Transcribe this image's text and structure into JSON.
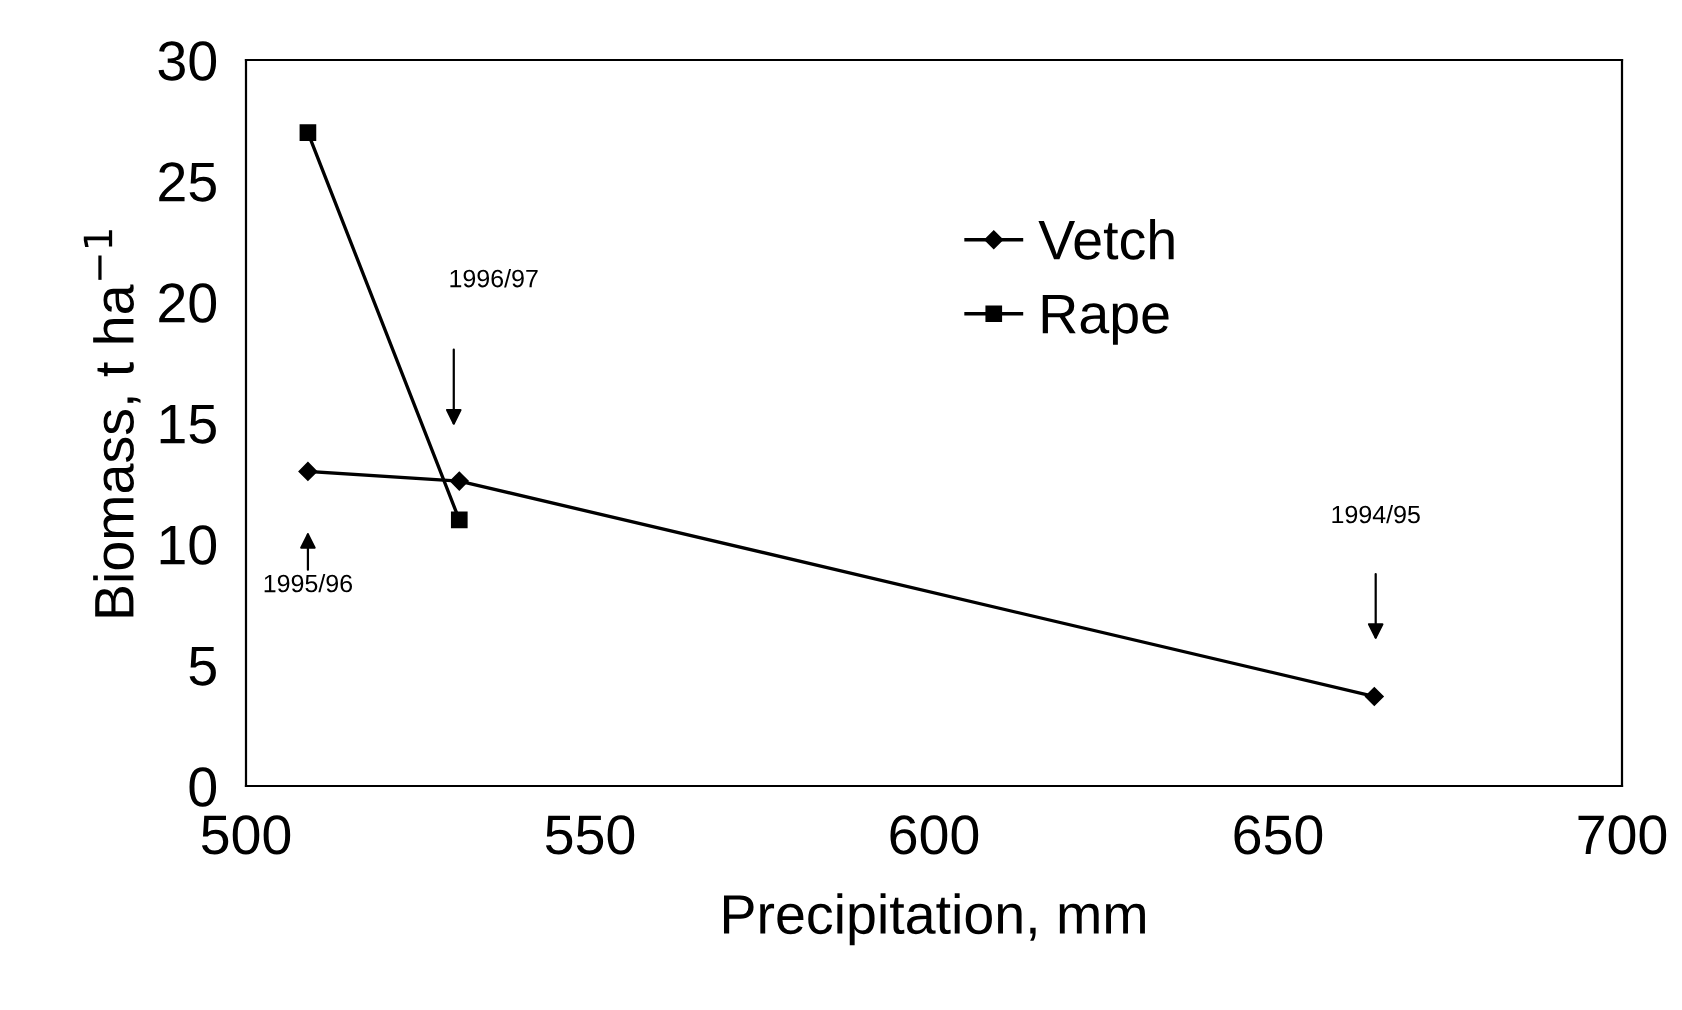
{
  "chart_data": {
    "type": "line",
    "xlabel": "Precipitation, mm",
    "ylabel": "Biomass, t ha$^{−1}$",
    "xlim": [
      500,
      700
    ],
    "xticks": [
      500,
      550,
      600,
      650,
      700
    ],
    "ylim": [
      0,
      30
    ],
    "yticks": [
      0,
      5,
      10,
      15,
      20,
      25,
      30
    ],
    "grid": false,
    "legend": "top",
    "line_style": "solid",
    "series": [
      {
        "name": "Vetch",
        "color": "#000000",
        "marker": "diamond",
        "x": [
          509,
          531,
          664
        ],
        "values": [
          13.0,
          12.6,
          3.7
        ]
      },
      {
        "name": "Rape",
        "color": "#000000",
        "marker": "square",
        "x": [
          509,
          531
        ],
        "values": [
          27,
          11
        ]
      }
    ],
    "annotations": [
      "1995/96",
      "1996/97",
      "1994/95"
    ]
  }
}
